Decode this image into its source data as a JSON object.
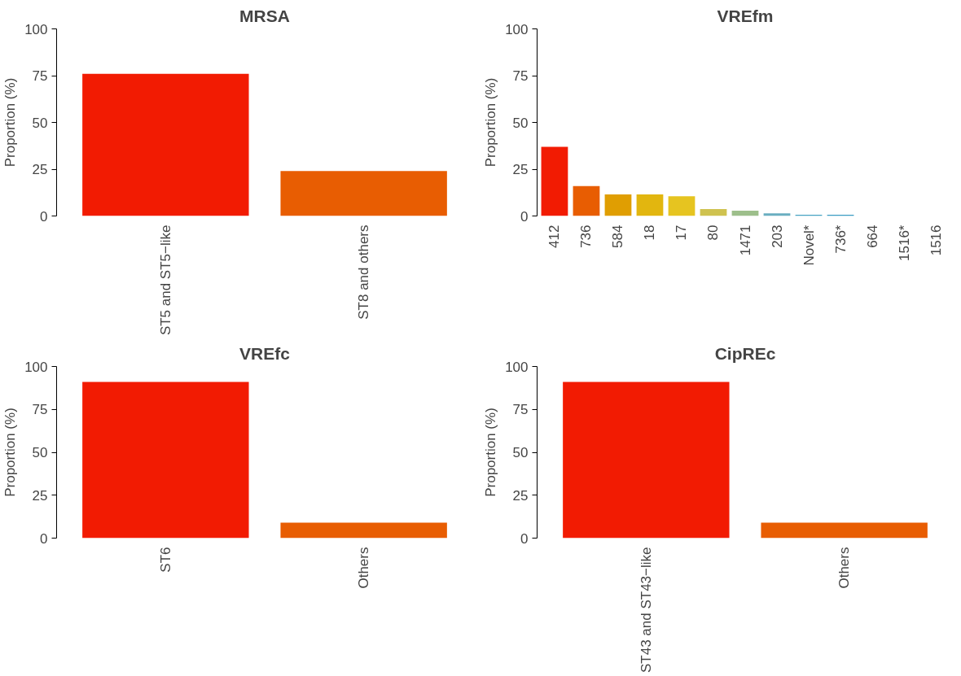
{
  "chart_data": [
    {
      "type": "bar",
      "title": "MRSA",
      "ylabel": "Proportion (%)",
      "categories": [
        "ST5 and ST5−like",
        "ST8 and others"
      ],
      "values": [
        76,
        24
      ],
      "colors": [
        "#f21b02",
        "#e85d02"
      ],
      "ylim": [
        0,
        100
      ],
      "yticks": [
        0,
        25,
        50,
        75,
        100
      ],
      "grid": false
    },
    {
      "type": "bar",
      "title": "VREfm",
      "ylabel": "Proportion (%)",
      "categories": [
        "412",
        "736",
        "584",
        "18",
        "17",
        "80",
        "1471",
        "203",
        "Novel*",
        "736*",
        "664",
        "1516*",
        "1516"
      ],
      "values": [
        37,
        16,
        11.5,
        11.5,
        10.5,
        3.7,
        2.8,
        1.4,
        0.6,
        0.6,
        0,
        0,
        0
      ],
      "colors": [
        "#f21b02",
        "#e85d02",
        "#e09e02",
        "#e2b60f",
        "#e6c420",
        "#cfc24f",
        "#9dbf8b",
        "#6aaec0",
        "#47a2c2",
        "#3a9bc2",
        "#3a9bc2",
        "#3a9bc2",
        "#3a9bc2"
      ],
      "ylim": [
        0,
        100
      ],
      "yticks": [
        0,
        25,
        50,
        75,
        100
      ],
      "grid": false
    },
    {
      "type": "bar",
      "title": "VREfc",
      "ylabel": "Proportion (%)",
      "categories": [
        "ST6",
        "Others"
      ],
      "values": [
        91,
        9
      ],
      "colors": [
        "#f21b02",
        "#e85d02"
      ],
      "ylim": [
        0,
        100
      ],
      "yticks": [
        0,
        25,
        50,
        75,
        100
      ],
      "grid": false
    },
    {
      "type": "bar",
      "title": "CipREc",
      "ylabel": "Proportion (%)",
      "categories": [
        "ST43 and ST43−like",
        "Others"
      ],
      "values": [
        91,
        9
      ],
      "colors": [
        "#f21b02",
        "#e85d02"
      ],
      "ylim": [
        0,
        100
      ],
      "yticks": [
        0,
        25,
        50,
        75,
        100
      ],
      "grid": false
    }
  ]
}
